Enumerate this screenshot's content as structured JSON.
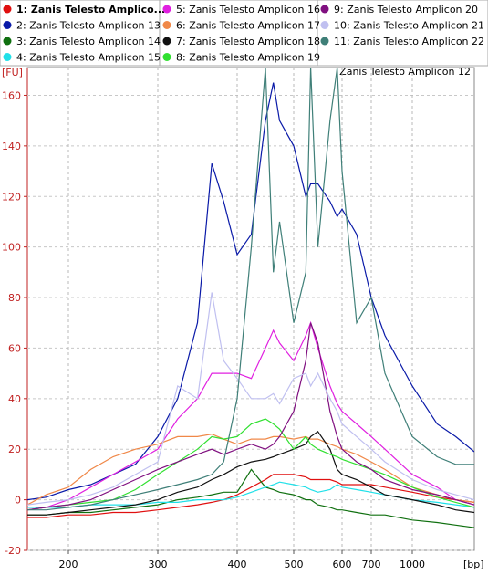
{
  "chart_data": {
    "type": "line",
    "title": "Zanis Telesto Amplicon 12",
    "xlabel": "[bp]",
    "ylabel": "[FU]",
    "x": [
      154,
      175,
      200,
      225,
      250,
      275,
      300,
      325,
      350,
      368,
      383,
      400,
      425,
      450,
      464,
      475,
      500,
      525,
      535,
      550,
      575,
      590,
      600,
      650,
      700,
      800,
      1000,
      1200,
      1350,
      1500
    ],
    "xlim": [
      154,
      1500
    ],
    "xticks": [
      200,
      300,
      400,
      500,
      600,
      700,
      1000
    ],
    "ylim": [
      -20,
      171
    ],
    "yticks": [
      -20,
      0,
      20,
      40,
      60,
      80,
      100,
      120,
      140,
      160
    ],
    "grid": true,
    "series": [
      {
        "name": "1: Zanis Telesto Amplico...",
        "color": "#e01010",
        "values": [
          -7,
          -7,
          -6,
          -6,
          -5,
          -5,
          -4,
          -3,
          -2,
          -1,
          0,
          2,
          5,
          8,
          10,
          10,
          10,
          9,
          8,
          8,
          8,
          7,
          6,
          6,
          6,
          5,
          3,
          1,
          0,
          -1
        ]
      },
      {
        "name": "2: Zanis Telesto Amplicon 13",
        "color": "#0a1aa8",
        "values": [
          0,
          1,
          4,
          6,
          10,
          14,
          25,
          40,
          70,
          133,
          118,
          97,
          105,
          150,
          165,
          150,
          140,
          120,
          125,
          125,
          118,
          112,
          115,
          105,
          80,
          65,
          45,
          30,
          25,
          19
        ]
      },
      {
        "name": "3: Zanis Telesto Amplicon 14",
        "color": "#107010",
        "values": [
          -6,
          -6,
          -5,
          -5,
          -4,
          -3,
          -2,
          0,
          1,
          2,
          3,
          3,
          12,
          5,
          4,
          3,
          2,
          0,
          0,
          -2,
          -3,
          -4,
          -4,
          -5,
          -6,
          -6,
          -8,
          -9,
          -10,
          -11
        ]
      },
      {
        "name": "4: Zanis Telesto Amplicon 15",
        "color": "#20e0e8",
        "values": [
          -3,
          -3,
          -3,
          -2,
          -2,
          -2,
          -1,
          -1,
          0,
          0,
          0,
          1,
          3,
          5,
          6,
          7,
          6,
          5,
          4,
          3,
          4,
          6,
          5,
          4,
          3,
          2,
          0,
          -1,
          -2,
          -3
        ]
      },
      {
        "name": "5: Zanis Telesto Amplicon 16",
        "color": "#e020e0",
        "values": [
          -4,
          -3,
          0,
          5,
          10,
          15,
          20,
          32,
          40,
          50,
          50,
          50,
          48,
          60,
          67,
          62,
          55,
          65,
          70,
          60,
          45,
          38,
          35,
          30,
          25,
          20,
          10,
          5,
          0,
          -2
        ]
      },
      {
        "name": "6: Zanis Telesto Amplicon 17",
        "color": "#f08848",
        "values": [
          -2,
          2,
          5,
          12,
          17,
          20,
          22,
          25,
          25,
          26,
          24,
          22,
          24,
          24,
          25,
          25,
          24,
          25,
          24,
          24,
          22,
          21,
          20,
          18,
          15,
          12,
          5,
          2,
          0,
          -1
        ]
      },
      {
        "name": "7: Zanis Telesto Amplicon 18",
        "color": "#101010",
        "values": [
          -6,
          -6,
          -5,
          -4,
          -3,
          -2,
          0,
          3,
          5,
          8,
          10,
          13,
          15,
          16,
          17,
          18,
          20,
          22,
          25,
          27,
          20,
          12,
          10,
          8,
          5,
          2,
          0,
          -2,
          -4,
          -5
        ]
      },
      {
        "name": "8: Zanis Telesto Amplicon 19",
        "color": "#30e030",
        "values": [
          -4,
          -3,
          -2,
          -1,
          0,
          4,
          10,
          15,
          20,
          25,
          24,
          25,
          30,
          32,
          30,
          28,
          20,
          25,
          22,
          20,
          18,
          17,
          16,
          14,
          12,
          10,
          5,
          1,
          -1,
          -3
        ]
      },
      {
        "name": "9: Zanis Telesto Amplicon 20",
        "color": "#801080",
        "values": [
          -4,
          -3,
          -2,
          0,
          4,
          8,
          12,
          15,
          18,
          20,
          18,
          20,
          22,
          20,
          22,
          25,
          35,
          55,
          70,
          62,
          35,
          25,
          20,
          15,
          12,
          8,
          4,
          2,
          0,
          -2
        ]
      },
      {
        "name": "10: Zanis Telesto Amplicon 21",
        "color": "#c0c0f0",
        "values": [
          -2,
          -1,
          0,
          2,
          5,
          10,
          15,
          45,
          40,
          82,
          55,
          48,
          40,
          40,
          42,
          38,
          48,
          50,
          45,
          50,
          40,
          35,
          30,
          25,
          20,
          15,
          8,
          4,
          2,
          0
        ]
      },
      {
        "name": "11: Zanis Telesto Amplicon 22",
        "color": "#3f7f78",
        "values": [
          -4,
          -4,
          -3,
          -2,
          0,
          2,
          4,
          6,
          8,
          10,
          15,
          40,
          100,
          171,
          90,
          110,
          70,
          90,
          171,
          100,
          150,
          171,
          130,
          70,
          80,
          50,
          25,
          17,
          14,
          14
        ]
      }
    ]
  }
}
